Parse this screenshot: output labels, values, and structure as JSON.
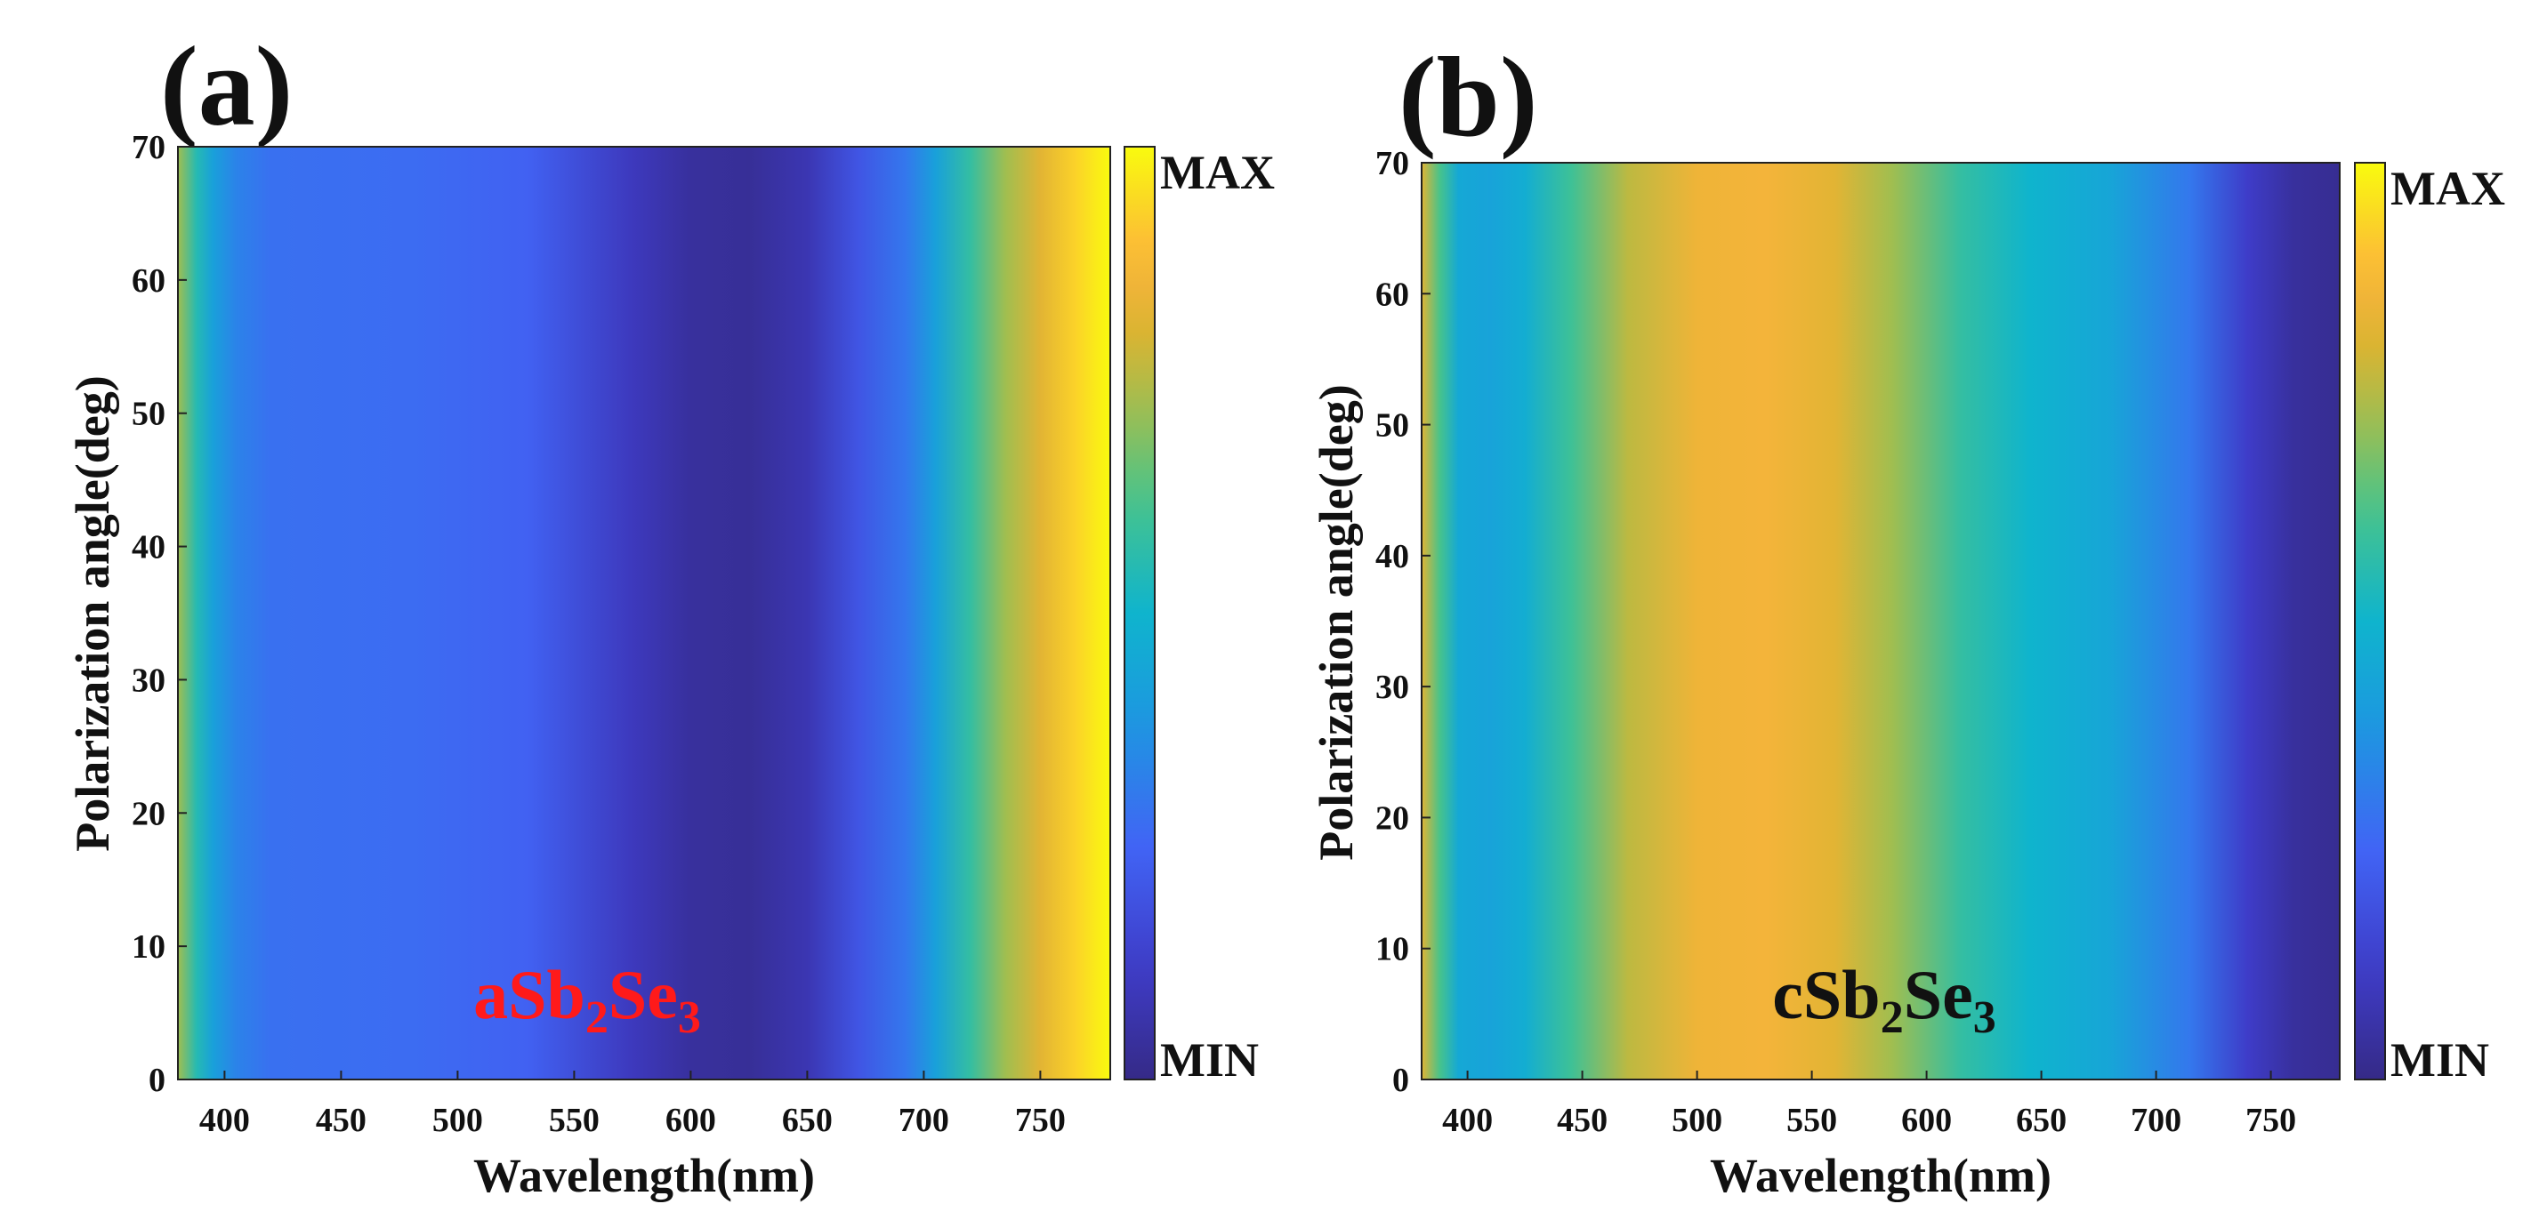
{
  "chart_data": [
    {
      "type": "heatmap",
      "panel_label": "(a)",
      "xlabel": "Wavelength(nm)",
      "ylabel": "Polarization angle(deg)",
      "xlim": [
        380,
        780
      ],
      "ylim": [
        0,
        70
      ],
      "x_ticks": [
        "400",
        "450",
        "500",
        "550",
        "600",
        "650",
        "700",
        "750"
      ],
      "y_ticks": [
        "0",
        "10",
        "20",
        "30",
        "40",
        "50",
        "60",
        "70"
      ],
      "colorbar": {
        "max_label": "MAX",
        "min_label": "MIN"
      },
      "annotation": {
        "prefix": "aSb",
        "sub1": "2",
        "middle": "Se",
        "sub2": "3",
        "color": "#ff1a1a"
      },
      "colormap": "parula",
      "profile_description": "intensity varies with wavelength only (uniform along polarization angle)",
      "intensity_profile": [
        {
          "wavelength": 380,
          "value": 0.72
        },
        {
          "wavelength": 388,
          "value": 0.55
        },
        {
          "wavelength": 395,
          "value": 0.42
        },
        {
          "wavelength": 405,
          "value": 0.33
        },
        {
          "wavelength": 420,
          "value": 0.28
        },
        {
          "wavelength": 480,
          "value": 0.27
        },
        {
          "wavelength": 530,
          "value": 0.24
        },
        {
          "wavelength": 575,
          "value": 0.1
        },
        {
          "wavelength": 600,
          "value": 0.04
        },
        {
          "wavelength": 625,
          "value": 0.03
        },
        {
          "wavelength": 650,
          "value": 0.08
        },
        {
          "wavelength": 672,
          "value": 0.2
        },
        {
          "wavelength": 692,
          "value": 0.3
        },
        {
          "wavelength": 705,
          "value": 0.42
        },
        {
          "wavelength": 720,
          "value": 0.58
        },
        {
          "wavelength": 735,
          "value": 0.72
        },
        {
          "wavelength": 750,
          "value": 0.82
        },
        {
          "wavelength": 765,
          "value": 0.93
        },
        {
          "wavelength": 780,
          "value": 1.0
        }
      ]
    },
    {
      "type": "heatmap",
      "panel_label": "(b)",
      "xlabel": "Wavelength(nm)",
      "ylabel": "Polarization angle(deg)",
      "xlim": [
        380,
        780
      ],
      "ylim": [
        0,
        70
      ],
      "x_ticks": [
        "400",
        "450",
        "500",
        "550",
        "600",
        "650",
        "700",
        "750"
      ],
      "y_ticks": [
        "0",
        "10",
        "20",
        "30",
        "40",
        "50",
        "60",
        "70"
      ],
      "colorbar": {
        "max_label": "MAX",
        "min_label": "MIN"
      },
      "annotation": {
        "prefix": "cSb",
        "sub1": "2",
        "middle": "Se",
        "sub2": "3",
        "color": "#111111"
      },
      "colormap": "parula",
      "profile_description": "intensity varies with wavelength only (uniform along polarization angle)",
      "intensity_profile": [
        {
          "wavelength": 380,
          "value": 0.82
        },
        {
          "wavelength": 388,
          "value": 0.62
        },
        {
          "wavelength": 396,
          "value": 0.45
        },
        {
          "wavelength": 410,
          "value": 0.43
        },
        {
          "wavelength": 425,
          "value": 0.47
        },
        {
          "wavelength": 445,
          "value": 0.6
        },
        {
          "wavelength": 470,
          "value": 0.76
        },
        {
          "wavelength": 500,
          "value": 0.85
        },
        {
          "wavelength": 530,
          "value": 0.86
        },
        {
          "wavelength": 560,
          "value": 0.82
        },
        {
          "wavelength": 585,
          "value": 0.72
        },
        {
          "wavelength": 615,
          "value": 0.58
        },
        {
          "wavelength": 645,
          "value": 0.5
        },
        {
          "wavelength": 680,
          "value": 0.44
        },
        {
          "wavelength": 715,
          "value": 0.3
        },
        {
          "wavelength": 740,
          "value": 0.12
        },
        {
          "wavelength": 760,
          "value": 0.04
        },
        {
          "wavelength": 780,
          "value": 0.02
        }
      ]
    }
  ]
}
